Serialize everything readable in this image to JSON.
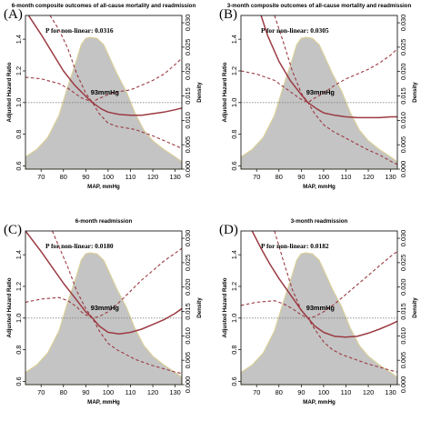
{
  "chart_data": [
    {
      "panel": "(A)",
      "type": "line",
      "title": "6-month composite outcomes of all-cause mortality and readmission",
      "annotation": "P for non-linear: 0.0316",
      "knot_label": "93mmHg",
      "xlabel": "MAP, mmHg",
      "ylabel": "Adjusted Hazard Ratio",
      "y2label": "Density",
      "xlim": [
        63,
        133
      ],
      "ylim": [
        0.58,
        1.55
      ],
      "y2lim": [
        0,
        0.0315
      ],
      "xticks": [
        70,
        80,
        90,
        100,
        110,
        120,
        130
      ],
      "yticks": [
        0.6,
        0.8,
        1.0,
        1.2,
        1.4
      ],
      "y2ticks": [
        0.0,
        0.005,
        0.01,
        0.015,
        0.02,
        0.025,
        0.03
      ],
      "reference_line": 1.0,
      "density": {
        "x": [
          63,
          68,
          73,
          78,
          82,
          86,
          88,
          90,
          92,
          95,
          98,
          100,
          104,
          108,
          112,
          116,
          120,
          125,
          130,
          133
        ],
        "y": [
          0.0025,
          0.004,
          0.0065,
          0.011,
          0.017,
          0.0225,
          0.0255,
          0.0268,
          0.027,
          0.0268,
          0.0255,
          0.0235,
          0.0195,
          0.016,
          0.0115,
          0.008,
          0.0058,
          0.004,
          0.0025,
          0.0015
        ]
      },
      "series": [
        {
          "role": "estimate",
          "x": [
            63,
            70,
            80,
            85,
            90,
            93,
            97,
            100,
            105,
            110,
            115,
            120,
            125,
            130,
            133
          ],
          "values": [
            1.58,
            1.43,
            1.2,
            1.11,
            1.04,
            1.0,
            0.96,
            0.94,
            0.925,
            0.92,
            0.92,
            0.93,
            0.94,
            0.955,
            0.965
          ]
        },
        {
          "role": "upper",
          "x": [
            63,
            70,
            78,
            82,
            86,
            88,
            90,
            93,
            95,
            100,
            105,
            110,
            115,
            120,
            125,
            130,
            133
          ],
          "values": [
            1.16,
            1.15,
            1.12,
            1.09,
            1.05,
            1.03,
            1.02,
            1.0,
            1.02,
            1.05,
            1.07,
            1.08,
            1.11,
            1.14,
            1.18,
            1.24,
            1.28
          ]
        },
        {
          "role": "lower",
          "x": [
            74,
            78,
            82,
            86,
            90,
            93,
            96,
            100,
            104,
            108,
            112,
            116,
            120,
            125,
            130,
            133
          ],
          "values": [
            1.55,
            1.46,
            1.34,
            1.18,
            1.06,
            1.0,
            0.93,
            0.87,
            0.85,
            0.84,
            0.83,
            0.81,
            0.79,
            0.76,
            0.73,
            0.71
          ]
        }
      ]
    },
    {
      "panel": "(B)",
      "type": "line",
      "title": "3-month composite outcomes of all-cause mortality and readmission",
      "annotation": "P for non-linear: 0.0305",
      "knot_label": "93mmHg",
      "xlabel": "MAP, mmHg",
      "ylabel": "Adjusted Hazard Ratio",
      "y2label": "Density",
      "xlim": [
        63,
        133
      ],
      "ylim": [
        0.58,
        1.55
      ],
      "y2lim": [
        0,
        0.0315
      ],
      "xticks": [
        70,
        80,
        90,
        100,
        110,
        120,
        130
      ],
      "yticks": [
        0.6,
        0.8,
        1.0,
        1.2,
        1.4
      ],
      "y2ticks": [
        0.0,
        0.005,
        0.01,
        0.015,
        0.02,
        0.025,
        0.03
      ],
      "reference_line": 1.0,
      "density": {
        "x": [
          63,
          68,
          73,
          78,
          82,
          86,
          88,
          90,
          92,
          95,
          98,
          100,
          104,
          108,
          112,
          116,
          120,
          125,
          130,
          133
        ],
        "y": [
          0.0025,
          0.004,
          0.0065,
          0.011,
          0.017,
          0.0225,
          0.0255,
          0.0268,
          0.027,
          0.0268,
          0.0255,
          0.0235,
          0.0195,
          0.016,
          0.0115,
          0.008,
          0.0058,
          0.004,
          0.0025,
          0.0015
        ]
      },
      "series": [
        {
          "role": "estimate",
          "x": [
            72,
            75,
            80,
            85,
            90,
            93,
            97,
            100,
            105,
            110,
            115,
            120,
            125,
            130,
            133
          ],
          "values": [
            1.55,
            1.42,
            1.26,
            1.14,
            1.05,
            1.0,
            0.96,
            0.935,
            0.92,
            0.91,
            0.905,
            0.905,
            0.905,
            0.91,
            0.91
          ]
        },
        {
          "role": "upper",
          "x": [
            63,
            70,
            78,
            82,
            86,
            88,
            90,
            93,
            95,
            100,
            105,
            110,
            115,
            120,
            125,
            130,
            133
          ],
          "values": [
            1.2,
            1.18,
            1.14,
            1.1,
            1.06,
            1.04,
            1.02,
            1.0,
            1.02,
            1.06,
            1.11,
            1.15,
            1.18,
            1.21,
            1.25,
            1.3,
            1.34
          ]
        },
        {
          "role": "lower",
          "x": [
            78,
            82,
            86,
            90,
            93,
            96,
            100,
            104,
            108,
            112,
            116,
            120,
            125,
            130,
            133
          ],
          "values": [
            1.55,
            1.38,
            1.2,
            1.06,
            1.0,
            0.93,
            0.86,
            0.82,
            0.79,
            0.76,
            0.73,
            0.7,
            0.67,
            0.63,
            0.61
          ]
        }
      ]
    },
    {
      "panel": "(C)",
      "type": "line",
      "title": "6-month readmission",
      "annotation": "P for non-linear: 0.0180",
      "knot_label": "93mmHg",
      "xlabel": "MAP, mmHg",
      "ylabel": "Adjusted Hazard Ratio",
      "y2label": "Density",
      "xlim": [
        63,
        133
      ],
      "ylim": [
        0.58,
        1.55
      ],
      "y2lim": [
        0,
        0.0315
      ],
      "xticks": [
        70,
        80,
        90,
        100,
        110,
        120,
        130
      ],
      "yticks": [
        0.6,
        0.8,
        1.0,
        1.2,
        1.4
      ],
      "y2ticks": [
        0.0,
        0.005,
        0.01,
        0.015,
        0.02,
        0.025,
        0.03
      ],
      "reference_line": 1.0,
      "density": {
        "x": [
          63,
          68,
          73,
          78,
          82,
          86,
          88,
          90,
          92,
          95,
          98,
          100,
          104,
          108,
          112,
          116,
          120,
          125,
          130,
          133
        ],
        "y": [
          0.0025,
          0.004,
          0.0065,
          0.011,
          0.017,
          0.0225,
          0.0255,
          0.0268,
          0.027,
          0.0268,
          0.0255,
          0.0235,
          0.0195,
          0.016,
          0.0115,
          0.008,
          0.0058,
          0.004,
          0.0025,
          0.0015
        ]
      },
      "series": [
        {
          "role": "estimate",
          "x": [
            63,
            70,
            75,
            80,
            85,
            90,
            93,
            96,
            100,
            105,
            110,
            115,
            120,
            125,
            130,
            133
          ],
          "values": [
            1.55,
            1.42,
            1.32,
            1.22,
            1.13,
            1.04,
            1.0,
            0.95,
            0.91,
            0.9,
            0.91,
            0.93,
            0.96,
            0.99,
            1.03,
            1.06
          ]
        },
        {
          "role": "upper",
          "x": [
            63,
            70,
            78,
            82,
            86,
            88,
            90,
            93,
            96,
            100,
            105,
            110,
            115,
            120,
            125,
            130,
            133
          ],
          "values": [
            1.1,
            1.12,
            1.13,
            1.11,
            1.07,
            1.04,
            1.02,
            1.0,
            1.01,
            1.04,
            1.1,
            1.17,
            1.24,
            1.3,
            1.36,
            1.41,
            1.44
          ]
        },
        {
          "role": "lower",
          "x": [
            75,
            78,
            82,
            86,
            90,
            93,
            96,
            100,
            104,
            108,
            112,
            116,
            120,
            125,
            130,
            133
          ],
          "values": [
            1.55,
            1.45,
            1.32,
            1.17,
            1.06,
            1.0,
            0.92,
            0.84,
            0.8,
            0.77,
            0.74,
            0.72,
            0.7,
            0.68,
            0.66,
            0.65
          ]
        }
      ]
    },
    {
      "panel": "(D)",
      "type": "line",
      "title": "3-month readmission",
      "annotation": "P for non-linear: 0.0182",
      "knot_label": "93mmHg",
      "xlabel": "MAP, mmHg",
      "ylabel": "Adjusted Hazard Ratio",
      "y2label": "Density",
      "xlim": [
        63,
        133
      ],
      "ylim": [
        0.58,
        1.55
      ],
      "y2lim": [
        0,
        0.0315
      ],
      "xticks": [
        70,
        80,
        90,
        100,
        110,
        120,
        130
      ],
      "yticks": [
        0.6,
        0.8,
        1.0,
        1.2,
        1.4
      ],
      "y2ticks": [
        0.0,
        0.005,
        0.01,
        0.015,
        0.02,
        0.025,
        0.03
      ],
      "reference_line": 1.0,
      "density": {
        "x": [
          63,
          68,
          73,
          78,
          82,
          86,
          88,
          90,
          92,
          95,
          98,
          100,
          104,
          108,
          112,
          116,
          120,
          125,
          130,
          133
        ],
        "y": [
          0.0025,
          0.004,
          0.0065,
          0.011,
          0.017,
          0.0225,
          0.0255,
          0.0268,
          0.027,
          0.0268,
          0.0255,
          0.0235,
          0.0195,
          0.016,
          0.0115,
          0.008,
          0.0058,
          0.004,
          0.0025,
          0.0015
        ]
      },
      "series": [
        {
          "role": "estimate",
          "x": [
            68,
            72,
            76,
            80,
            85,
            90,
            93,
            96,
            100,
            105,
            110,
            115,
            120,
            125,
            130,
            133
          ],
          "values": [
            1.55,
            1.44,
            1.34,
            1.25,
            1.15,
            1.05,
            1.0,
            0.95,
            0.91,
            0.885,
            0.88,
            0.885,
            0.905,
            0.93,
            0.96,
            0.98
          ]
        },
        {
          "role": "upper",
          "x": [
            63,
            70,
            78,
            82,
            86,
            88,
            90,
            93,
            96,
            100,
            105,
            110,
            115,
            120,
            125,
            130,
            133
          ],
          "values": [
            1.08,
            1.1,
            1.11,
            1.09,
            1.06,
            1.04,
            1.02,
            1.0,
            1.01,
            1.04,
            1.09,
            1.15,
            1.21,
            1.27,
            1.33,
            1.39,
            1.42
          ]
        },
        {
          "role": "lower",
          "x": [
            78,
            82,
            86,
            90,
            93,
            96,
            100,
            104,
            108,
            112,
            116,
            120,
            125,
            130,
            133
          ],
          "values": [
            1.55,
            1.36,
            1.18,
            1.05,
            1.0,
            0.93,
            0.85,
            0.8,
            0.77,
            0.75,
            0.73,
            0.71,
            0.69,
            0.67,
            0.66
          ]
        }
      ]
    }
  ],
  "colors": {
    "density_fill": "#c4c4c4",
    "density_edge": "#d9cf9a",
    "curve": "#9b3a42",
    "reference": "#808080",
    "axis": "#000000"
  }
}
